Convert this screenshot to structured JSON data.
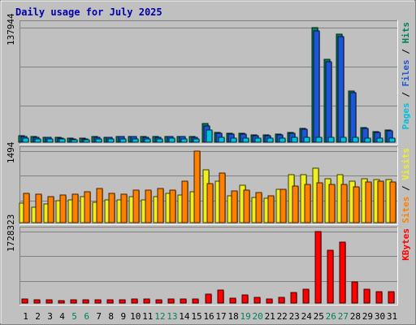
{
  "chart_data": {
    "type": "bar",
    "title": "Daily usage for July 2025",
    "categories": [
      "1",
      "2",
      "3",
      "4",
      "5",
      "6",
      "7",
      "8",
      "9",
      "10",
      "11",
      "12",
      "13",
      "14",
      "15",
      "16",
      "17",
      "18",
      "19",
      "20",
      "21",
      "22",
      "23",
      "24",
      "25",
      "26",
      "27",
      "28",
      "29",
      "30",
      "31"
    ],
    "weekend_days": [
      "5",
      "6",
      "12",
      "13",
      "19",
      "20",
      "26",
      "27"
    ],
    "panels": [
      {
        "ylabel_max": "137944",
        "ylim": [
          0,
          137944
        ],
        "legend": [
          "Pages",
          "Files",
          "Hits"
        ],
        "series": [
          {
            "name": "Hits",
            "color": "#00805c",
            "values": [
              7800,
              6700,
              6000,
              5400,
              5000,
              4600,
              6500,
              6100,
              7000,
              7000,
              6600,
              6600,
              7200,
              7000,
              6500,
              23000,
              11500,
              11000,
              11000,
              8500,
              8500,
              9500,
              12000,
              17000,
              137944,
              100000,
              130000,
              62000,
              18000,
              13000,
              15000
            ]
          },
          {
            "name": "Files",
            "color": "#1e55d5",
            "values": [
              6900,
              6100,
              5400,
              4800,
              4400,
              4100,
              5900,
              5500,
              6400,
              6400,
              6000,
              6000,
              6600,
              6400,
              5900,
              20000,
              10500,
              10000,
              10000,
              7700,
              7700,
              8600,
              11000,
              15500,
              134000,
              97000,
              127000,
              60000,
              16500,
              12000,
              13800
            ]
          },
          {
            "name": "Pages",
            "color": "#00c0e0",
            "values": [
              4600,
              4400,
              3800,
              3500,
              3100,
              3000,
              3700,
              3500,
              3900,
              4100,
              4000,
              4200,
              4500,
              4400,
              4100,
              14500,
              5500,
              5300,
              5200,
              4800,
              4700,
              5100,
              5500,
              6000,
              5600,
              5700,
              6000,
              5700,
              5000,
              5100,
              5200
            ]
          }
        ]
      },
      {
        "ylabel_max": "1494",
        "ylim": [
          0,
          1494
        ],
        "legend": [
          "Sites",
          "Visits"
        ],
        "series": [
          {
            "name": "Visits",
            "color": "#f0f020",
            "values": [
              400,
              330,
              390,
              450,
              480,
              540,
              420,
              470,
              480,
              540,
              480,
              540,
              610,
              580,
              650,
              1100,
              860,
              560,
              780,
              530,
              500,
              700,
              1000,
              1000,
              1130,
              910,
              1000,
              870,
              920,
              900,
              900
            ]
          },
          {
            "name": "Sites",
            "color": "#ff8000",
            "values": [
              610,
              590,
              550,
              570,
              590,
              650,
              720,
              610,
              590,
              670,
              670,
              710,
              680,
              860,
              1494,
              810,
              1030,
              660,
              670,
              630,
              560,
              690,
              770,
              790,
              830,
              800,
              790,
              750,
              840,
              860,
              850
            ]
          }
        ]
      },
      {
        "ylabel_max": "1728323",
        "ylim": [
          0,
          1728323
        ],
        "legend": [
          "KBytes"
        ],
        "series": [
          {
            "name": "KBytes",
            "color": "#ff0000",
            "values": [
              90000,
              85000,
              70000,
              60000,
              80000,
              85000,
              80000,
              75000,
              85000,
              95000,
              105000,
              85000,
              90000,
              105000,
              95000,
              220000,
              320000,
              120000,
              190000,
              130000,
              100000,
              145000,
              250000,
              340000,
              1728323,
              1280000,
              1470000,
              510000,
              340000,
              270000,
              270000
            ]
          }
        ]
      }
    ]
  }
}
